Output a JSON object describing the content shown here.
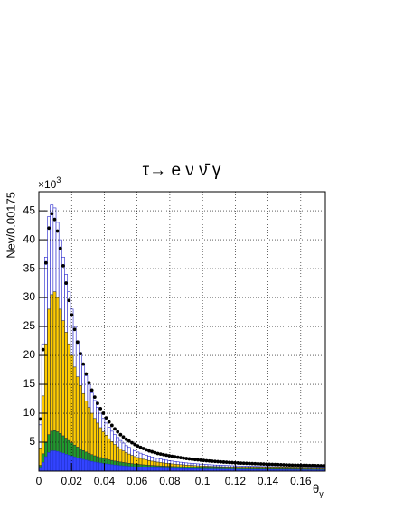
{
  "chart_data": {
    "type": "histogram",
    "title": "τ→ e ν ν̄ γ",
    "ylabel": "Nev/0.00175",
    "y_multiplier": {
      "text": "×10",
      "superscript": "3"
    },
    "xlabel": {
      "text": "θ",
      "subscript": "γ"
    },
    "xlim": [
      0,
      0.175
    ],
    "ylim": [
      0,
      48.3
    ],
    "xticks": [
      0,
      0.02,
      0.04,
      0.06,
      0.08,
      0.1,
      0.12,
      0.14,
      0.16
    ],
    "yticks": [
      5,
      10,
      15,
      20,
      25,
      30,
      35,
      40,
      45
    ],
    "grid": true,
    "bins": [
      0,
      0.00175,
      0.0035,
      0.00525,
      0.007,
      0.00875,
      0.0105,
      0.01225,
      0.014,
      0.01575,
      0.0175,
      0.01925,
      0.021,
      0.02275,
      0.0245,
      0.02625,
      0.028,
      0.02975,
      0.0315,
      0.03325,
      0.035,
      0.03675,
      0.0385,
      0.04025,
      0.042,
      0.04375,
      0.0455,
      0.04725,
      0.049,
      0.05075,
      0.0525,
      0.05425,
      0.056,
      0.05775,
      0.0595,
      0.06125,
      0.063,
      0.06475,
      0.0665,
      0.06825,
      0.07,
      0.07175,
      0.0735,
      0.07525,
      0.077,
      0.07875,
      0.0805,
      0.08225,
      0.084,
      0.08575,
      0.0875,
      0.08925,
      0.091,
      0.09275,
      0.0945,
      0.09625,
      0.098,
      0.09975,
      0.1015,
      0.10325,
      0.105,
      0.10675,
      0.1085,
      0.11025,
      0.112,
      0.11375,
      0.1155,
      0.11725,
      0.119,
      0.12075,
      0.1225,
      0.12425,
      0.126,
      0.12775,
      0.1295,
      0.13125,
      0.133,
      0.13475,
      0.1365,
      0.13825,
      0.14,
      0.14175,
      0.1435,
      0.14525,
      0.147,
      0.14875,
      0.1505,
      0.15225,
      0.154,
      0.15575,
      0.1575,
      0.15925,
      0.161,
      0.16275,
      0.1645,
      0.16625,
      0.168,
      0.16975,
      0.1715,
      0.17325,
      0.175
    ],
    "series": [
      {
        "style": "filled",
        "color": "#2222cc",
        "fill": "#ffffff",
        "values": [
          8,
          22,
          37,
          44,
          46,
          45.5,
          43,
          40,
          37,
          34,
          31,
          28,
          25,
          22.5,
          20.5,
          18.5,
          16.5,
          15,
          13.5,
          12.2,
          11,
          10,
          9.1,
          8.3,
          7.6,
          6.9,
          6.3,
          5.8,
          5.3,
          4.85,
          4.4,
          4.1,
          3.8,
          3.55,
          3.3,
          3.1,
          2.9,
          2.75,
          2.6,
          2.45,
          2.3,
          2.2,
          2.1,
          2.0,
          1.9,
          1.82,
          1.74,
          1.67,
          1.6,
          1.54,
          1.48,
          1.43,
          1.38,
          1.34,
          1.3,
          1.26,
          1.22,
          1.18,
          1.15,
          1.12,
          1.09,
          1.06,
          1.04,
          1.02,
          1.0,
          0.98,
          0.96,
          0.94,
          0.92,
          0.9,
          0.88,
          0.87,
          0.86,
          0.85,
          0.84,
          0.83,
          0.82,
          0.81,
          0.8,
          0.79,
          0.78,
          0.77,
          0.76,
          0.75,
          0.74,
          0.73,
          0.72,
          0.71,
          0.7,
          0.69,
          0.68,
          0.67,
          0.66,
          0.65,
          0.64,
          0.63,
          0.62,
          0.61,
          0.6,
          0.59
        ]
      },
      {
        "style": "filled",
        "color": "#333333",
        "fill": "#ffcc00",
        "values": [
          4,
          13,
          22,
          28,
          30.5,
          31,
          30,
          28,
          26,
          24,
          22,
          20,
          18,
          16.3,
          14.8,
          13.4,
          12.1,
          11,
          10,
          9.1,
          8.3,
          7.5,
          6.8,
          6.2,
          5.6,
          5.1,
          4.6,
          4.2,
          3.8,
          3.5,
          3.2,
          2.95,
          2.72,
          2.52,
          2.35,
          2.2,
          2.06,
          1.94,
          1.83,
          1.73,
          1.64,
          1.56,
          1.49,
          1.43,
          1.37,
          1.31,
          1.26,
          1.21,
          1.17,
          1.13,
          1.09,
          1.05,
          1.02,
          0.99,
          0.96,
          0.93,
          0.91,
          0.89,
          0.87,
          0.85,
          0.83,
          0.81,
          0.79,
          0.78,
          0.76,
          0.75,
          0.73,
          0.72,
          0.71,
          0.7,
          0.69,
          0.68,
          0.67,
          0.66,
          0.65,
          0.64,
          0.63,
          0.62,
          0.62,
          0.61,
          0.6,
          0.6,
          0.59,
          0.58,
          0.58,
          0.57,
          0.57,
          0.56,
          0.56,
          0.55,
          0.55,
          0.54,
          0.54,
          0.53,
          0.53,
          0.52,
          0.52,
          0.52,
          0.51,
          0.51
        ]
      },
      {
        "style": "filled",
        "color": "#333333",
        "fill": "#1f9a2d",
        "values": [
          1,
          3,
          5,
          6.3,
          6.9,
          7,
          6.8,
          6.5,
          6.1,
          5.7,
          5.3,
          4.9,
          4.5,
          4.15,
          3.85,
          3.55,
          3.3,
          3.05,
          2.85,
          2.65,
          2.5,
          2.35,
          2.2,
          2.08,
          1.96,
          1.85,
          1.75,
          1.66,
          1.58,
          1.5,
          1.43,
          1.36,
          1.3,
          1.24,
          1.19,
          1.14,
          1.1,
          1.06,
          1.02,
          0.99,
          0.96,
          0.93,
          0.9,
          0.88,
          0.85,
          0.83,
          0.81,
          0.79,
          0.77,
          0.75,
          0.73,
          0.71,
          0.7,
          0.68,
          0.67,
          0.65,
          0.64,
          0.63,
          0.62,
          0.61,
          0.6,
          0.59,
          0.58,
          0.57,
          0.56,
          0.55,
          0.54,
          0.53,
          0.52,
          0.51,
          0.5,
          0.5,
          0.49,
          0.49,
          0.48,
          0.48,
          0.47,
          0.47,
          0.46,
          0.46,
          0.45,
          0.45,
          0.44,
          0.44,
          0.43,
          0.43,
          0.42,
          0.42,
          0.41,
          0.41,
          0.4,
          0.4,
          0.4,
          0.39,
          0.39,
          0.39,
          0.38,
          0.38,
          0.38,
          0.37
        ]
      },
      {
        "style": "filled",
        "color": "#2233cc",
        "fill": "#3344ff",
        "values": [
          0.5,
          1.5,
          2.5,
          3.2,
          3.5,
          3.5,
          3.4,
          3.25,
          3.1,
          2.9,
          2.75,
          2.6,
          2.45,
          2.3,
          2.15,
          2.02,
          1.9,
          1.78,
          1.67,
          1.57,
          1.48,
          1.4,
          1.32,
          1.25,
          1.18,
          1.12,
          1.06,
          1.0,
          0.95,
          0.9,
          0.86,
          0.82,
          0.78,
          0.75,
          0.72,
          0.69,
          0.66,
          0.64,
          0.62,
          0.6,
          0.58,
          0.56,
          0.54,
          0.53,
          0.51,
          0.5,
          0.49,
          0.47,
          0.46,
          0.45,
          0.44,
          0.43,
          0.42,
          0.41,
          0.4,
          0.39,
          0.38,
          0.38,
          0.37,
          0.36,
          0.35,
          0.35,
          0.34,
          0.33,
          0.33,
          0.32,
          0.32,
          0.31,
          0.31,
          0.3,
          0.3,
          0.29,
          0.29,
          0.28,
          0.28,
          0.28,
          0.27,
          0.27,
          0.27,
          0.26,
          0.26,
          0.26,
          0.25,
          0.25,
          0.25,
          0.24,
          0.24,
          0.24,
          0.24,
          0.23,
          0.23,
          0.23,
          0.23,
          0.22,
          0.22,
          0.22,
          0.22,
          0.21,
          0.21,
          0.21
        ]
      },
      {
        "style": "markers",
        "color": "#000000",
        "values": [
          9,
          21,
          36,
          42,
          44.5,
          43.5,
          41.5,
          38.5,
          35.5,
          32.5,
          29.5,
          27,
          24.5,
          22.3,
          20.3,
          18.5,
          16.8,
          15.3,
          14,
          12.8,
          11.7,
          10.8,
          10,
          9.2,
          8.5,
          7.9,
          7.3,
          6.8,
          6.3,
          5.9,
          5.5,
          5.2,
          4.9,
          4.6,
          4.35,
          4.1,
          3.9,
          3.7,
          3.5,
          3.35,
          3.2,
          3.05,
          2.95,
          2.85,
          2.75,
          2.65,
          2.55,
          2.47,
          2.4,
          2.32,
          2.25,
          2.18,
          2.12,
          2.06,
          2.0,
          1.95,
          1.9,
          1.85,
          1.8,
          1.76,
          1.72,
          1.68,
          1.64,
          1.6,
          1.57,
          1.54,
          1.51,
          1.48,
          1.45,
          1.42,
          1.39,
          1.37,
          1.35,
          1.33,
          1.31,
          1.29,
          1.27,
          1.25,
          1.23,
          1.21,
          1.19,
          1.17,
          1.15,
          1.13,
          1.11,
          1.09,
          1.07,
          1.05,
          1.04,
          1.03,
          1.02,
          1.01,
          1.0,
          0.99,
          0.98,
          0.97,
          0.96,
          0.95,
          0.94,
          0.93
        ]
      }
    ]
  }
}
